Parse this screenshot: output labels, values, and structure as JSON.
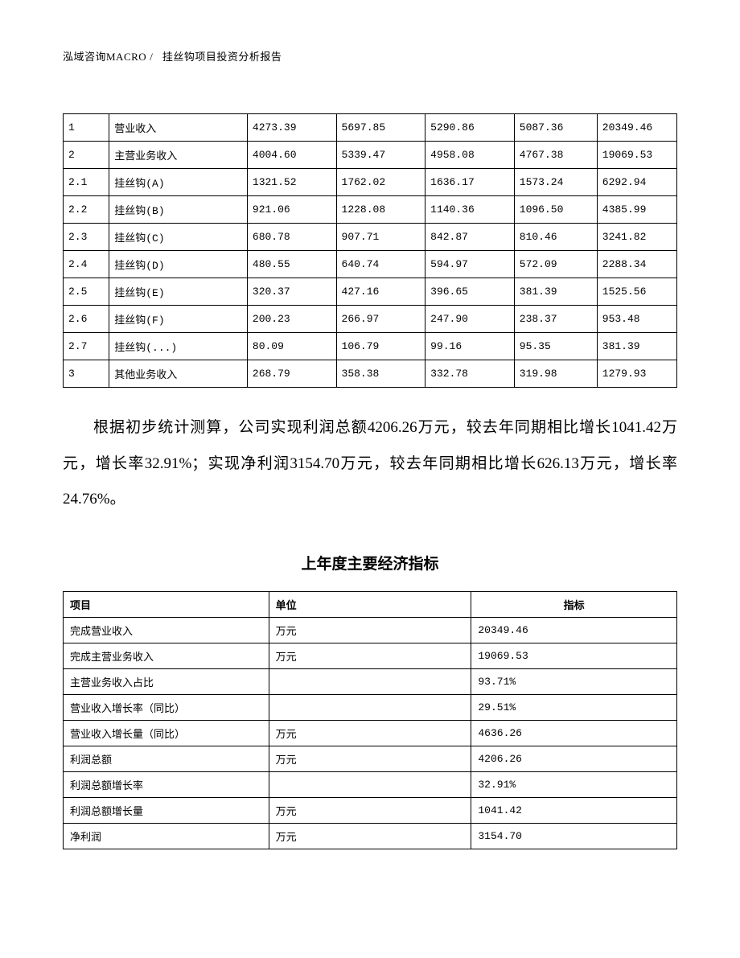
{
  "header": {
    "company": "泓域咨询MACRO",
    "separator": "/",
    "doc_title": "挂丝钩项目投资分析报告"
  },
  "table1": {
    "type": "table",
    "border_color": "#000000",
    "font_size": 13,
    "columns_width_pct": [
      7.5,
      22.5,
      14.5,
      14.5,
      14.5,
      13.5,
      13
    ],
    "rows": [
      [
        "1",
        "营业收入",
        "4273.39",
        "5697.85",
        "5290.86",
        "5087.36",
        "20349.46"
      ],
      [
        "2",
        "主营业务收入",
        "4004.60",
        "5339.47",
        "4958.08",
        "4767.38",
        "19069.53"
      ],
      [
        "2.1",
        "挂丝钩(A)",
        "1321.52",
        "1762.02",
        "1636.17",
        "1573.24",
        "6292.94"
      ],
      [
        "2.2",
        "挂丝钩(B)",
        "921.06",
        "1228.08",
        "1140.36",
        "1096.50",
        "4385.99"
      ],
      [
        "2.3",
        "挂丝钩(C)",
        "680.78",
        "907.71",
        "842.87",
        "810.46",
        "3241.82"
      ],
      [
        "2.4",
        "挂丝钩(D)",
        "480.55",
        "640.74",
        "594.97",
        "572.09",
        "2288.34"
      ],
      [
        "2.5",
        "挂丝钩(E)",
        "320.37",
        "427.16",
        "396.65",
        "381.39",
        "1525.56"
      ],
      [
        "2.6",
        "挂丝钩(F)",
        "200.23",
        "266.97",
        "247.90",
        "238.37",
        "953.48"
      ],
      [
        "2.7",
        "挂丝钩(...)",
        "80.09",
        "106.79",
        "99.16",
        "95.35",
        "381.39"
      ],
      [
        "3",
        "其他业务收入",
        "268.79",
        "358.38",
        "332.78",
        "319.98",
        "1279.93"
      ]
    ]
  },
  "paragraph": {
    "text": "根据初步统计测算，公司实现利润总额4206.26万元，较去年同期相比增长1041.42万元，增长率32.91%；实现净利润3154.70万元，较去年同期相比增长626.13万元，增长率24.76%。",
    "font_size": 19,
    "line_height": 2.35,
    "text_indent_em": 2
  },
  "section_title": {
    "text": "上年度主要经济指标",
    "font_size": 19,
    "font_weight": "bold"
  },
  "table2": {
    "type": "table",
    "border_color": "#000000",
    "font_size": 13,
    "headers": [
      "项目",
      "单位",
      "指标"
    ],
    "header_align": [
      "left",
      "left",
      "center"
    ],
    "columns_width_pct": [
      33.5,
      33,
      33.5
    ],
    "rows": [
      [
        "完成营业收入",
        "万元",
        "20349.46"
      ],
      [
        "完成主营业务收入",
        "万元",
        "19069.53"
      ],
      [
        "主营业务收入占比",
        "",
        "93.71%"
      ],
      [
        "营业收入增长率（同比）",
        "",
        "29.51%"
      ],
      [
        "营业收入增长量（同比）",
        "万元",
        "4636.26"
      ],
      [
        "利润总额",
        "万元",
        "4206.26"
      ],
      [
        "利润总额增长率",
        "",
        "32.91%"
      ],
      [
        "利润总额增长量",
        "万元",
        "1041.42"
      ],
      [
        "净利润",
        "万元",
        "3154.70"
      ]
    ]
  },
  "colors": {
    "background": "#ffffff",
    "text": "#000000",
    "border": "#000000"
  }
}
